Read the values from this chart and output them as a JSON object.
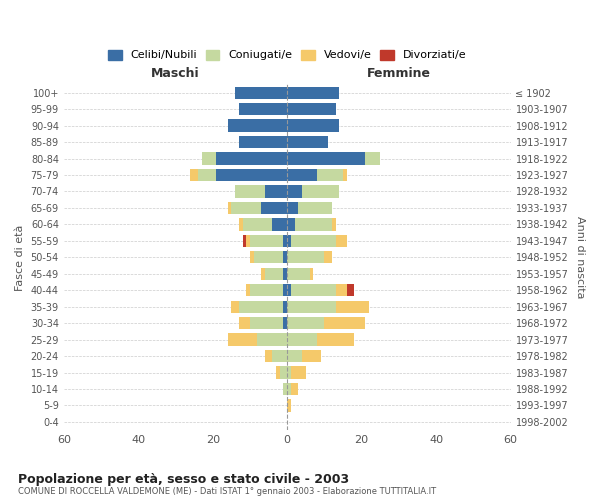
{
  "age_groups": [
    "0-4",
    "5-9",
    "10-14",
    "15-19",
    "20-24",
    "25-29",
    "30-34",
    "35-39",
    "40-44",
    "45-49",
    "50-54",
    "55-59",
    "60-64",
    "65-69",
    "70-74",
    "75-79",
    "80-84",
    "85-89",
    "90-94",
    "95-99",
    "100+"
  ],
  "birth_years": [
    "1998-2002",
    "1993-1997",
    "1988-1992",
    "1983-1987",
    "1978-1982",
    "1973-1977",
    "1968-1972",
    "1963-1967",
    "1958-1962",
    "1953-1957",
    "1948-1952",
    "1943-1947",
    "1938-1942",
    "1933-1937",
    "1928-1932",
    "1923-1927",
    "1918-1922",
    "1913-1917",
    "1908-1912",
    "1903-1907",
    "≤ 1902"
  ],
  "male": {
    "celibi": [
      14,
      13,
      16,
      13,
      19,
      19,
      6,
      7,
      4,
      1,
      1,
      1,
      1,
      1,
      1,
      0,
      0,
      0,
      0,
      0,
      0
    ],
    "coniugati": [
      0,
      0,
      0,
      0,
      4,
      5,
      8,
      8,
      8,
      9,
      8,
      5,
      9,
      12,
      9,
      8,
      4,
      2,
      1,
      0,
      0
    ],
    "vedovi": [
      0,
      0,
      0,
      0,
      0,
      2,
      0,
      1,
      1,
      1,
      1,
      1,
      1,
      2,
      3,
      8,
      2,
      1,
      0,
      0,
      0
    ],
    "divorziati": [
      0,
      0,
      0,
      0,
      0,
      0,
      0,
      0,
      0,
      1,
      0,
      0,
      0,
      0,
      0,
      0,
      0,
      0,
      0,
      0,
      0
    ]
  },
  "female": {
    "nubili": [
      14,
      13,
      14,
      11,
      21,
      8,
      4,
      3,
      2,
      1,
      0,
      0,
      1,
      0,
      0,
      0,
      0,
      0,
      0,
      0,
      0
    ],
    "coniugate": [
      0,
      0,
      0,
      0,
      4,
      7,
      10,
      9,
      10,
      12,
      10,
      6,
      12,
      13,
      10,
      8,
      4,
      1,
      1,
      0,
      0
    ],
    "vedove": [
      0,
      0,
      0,
      0,
      0,
      1,
      0,
      0,
      1,
      3,
      2,
      1,
      3,
      9,
      11,
      10,
      5,
      4,
      2,
      1,
      0
    ],
    "divorziate": [
      0,
      0,
      0,
      0,
      0,
      0,
      0,
      0,
      0,
      0,
      0,
      0,
      2,
      0,
      0,
      0,
      0,
      0,
      0,
      0,
      0
    ]
  },
  "colors": {
    "celibi": "#3a6ea5",
    "coniugati": "#c5d9a0",
    "vedovi": "#f5c96a",
    "divorziati": "#c0392b"
  },
  "xlim": 60,
  "title": "Popolazione per età, sesso e stato civile - 2003",
  "subtitle": "COMUNE DI ROCCELLA VALDEMONE (ME) - Dati ISTAT 1° gennaio 2003 - Elaborazione TUTTITALIA.IT",
  "xlabel_left": "Maschi",
  "xlabel_right": "Femmine",
  "ylabel_left": "Fasce di età",
  "ylabel_right": "Anni di nascita",
  "legend_labels": [
    "Celibi/Nubili",
    "Coniugati/e",
    "Vedovi/e",
    "Divorziati/e"
  ],
  "background_color": "#ffffff",
  "grid_color": "#cccccc"
}
